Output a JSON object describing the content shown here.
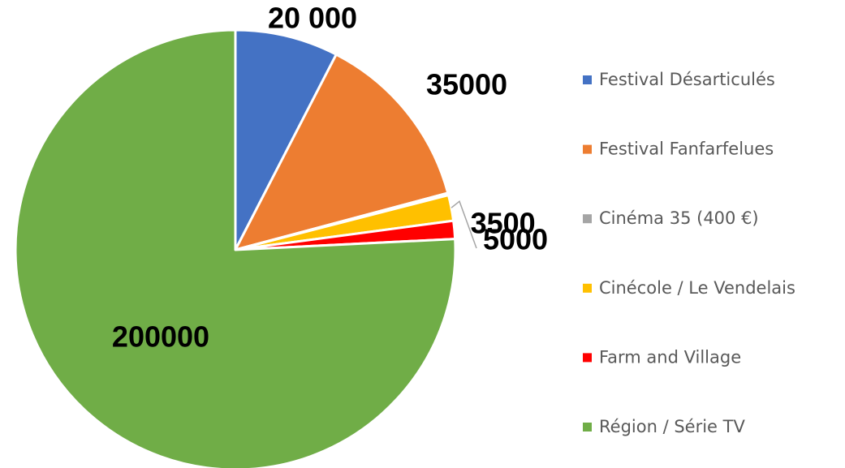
{
  "chart_data": {
    "type": "pie",
    "categories": [
      "Festival Désarticulés",
      "Festival Fanfarfelues",
      "Cinéma 35 (400 €)",
      "Cinécole / Le Vendelais",
      "Farm and Village",
      "Région / Série TV"
    ],
    "values": [
      20000,
      35000,
      400,
      5000,
      3500,
      200000
    ],
    "value_labels": [
      "20 000",
      "35000",
      null,
      "5000",
      "3500",
      "200000"
    ],
    "colors": [
      "#4472c4",
      "#ed7d31",
      "#a5a5a5",
      "#ffc000",
      "#ff0000",
      "#70ad47"
    ],
    "legend": "right"
  }
}
